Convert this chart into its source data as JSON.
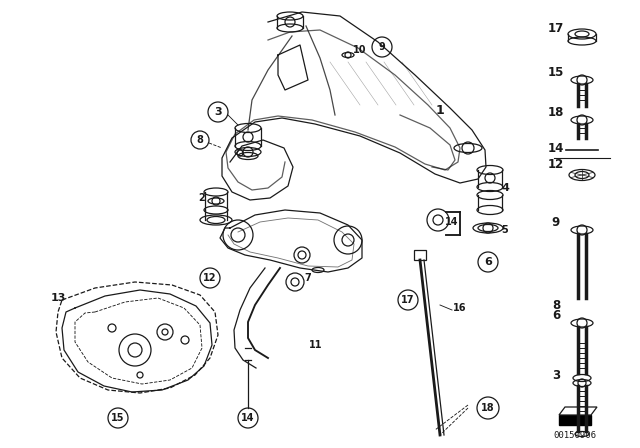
{
  "bg_color": "#ffffff",
  "watermark": "00150906",
  "fig_width": 6.4,
  "fig_height": 4.48,
  "dpi": 100,
  "dark": "#1a1a1a",
  "lw": 0.9
}
